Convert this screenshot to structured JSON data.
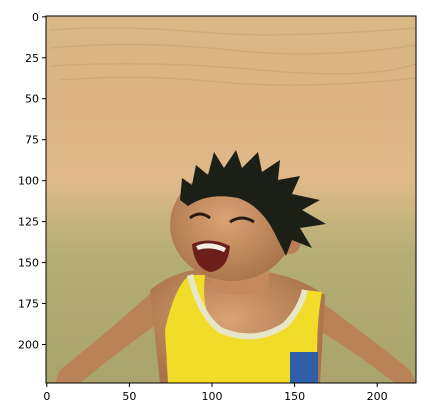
{
  "x_axis": {
    "tick_values": [
      0,
      50,
      100,
      150,
      200
    ],
    "range": [
      -0.5,
      223.5
    ]
  },
  "y_axis": {
    "tick_values": [
      0,
      25,
      50,
      75,
      100,
      125,
      150,
      175,
      200
    ],
    "range": [
      -0.5,
      223.5
    ],
    "inverted": true
  },
  "image": {
    "subject_icon": "laughing-child-photo-icon",
    "colors": {
      "sand_light": "#e2c08f",
      "sand_mid": "#d8b27f",
      "sand_wet": "#b8b078",
      "sand_wet_dark": "#a9a36c",
      "hair": "#1b1f16",
      "skin": "#c98f62",
      "skin_shadow": "#a8724a",
      "tank_top": "#f2dc2a",
      "tank_trim": "#e8e6c8",
      "shorts": "#2f5fa8"
    }
  }
}
